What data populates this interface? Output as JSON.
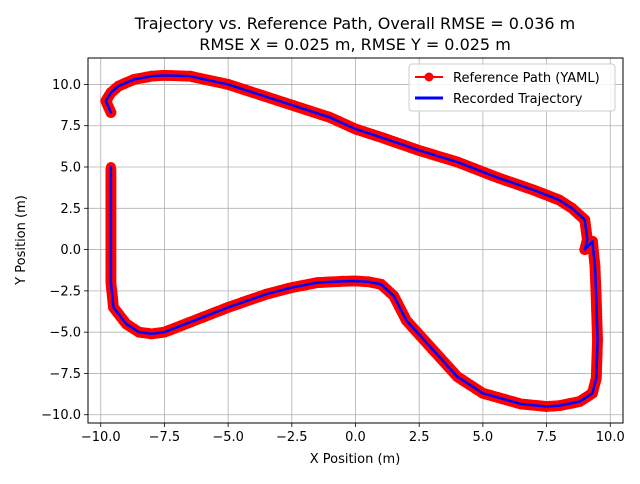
{
  "chart_data": {
    "type": "line",
    "title_line1": "Trajectory vs. Reference Path, Overall RMSE = 0.036 m",
    "title_line2": "RMSE X = 0.025 m, RMSE Y = 0.025 m",
    "xlabel": "X Position (m)",
    "ylabel": "Y Position (m)",
    "xlim": [
      -10.5,
      10.5
    ],
    "ylim": [
      -10.5,
      11.6
    ],
    "xticks": [
      -10.0,
      -7.5,
      -5.0,
      -2.5,
      0.0,
      2.5,
      5.0,
      7.5,
      10.0
    ],
    "xtick_labels": [
      "−10.0",
      "−7.5",
      "−5.0",
      "−2.5",
      "0.0",
      "2.5",
      "5.0",
      "7.5",
      "10.0"
    ],
    "yticks": [
      -10.0,
      -7.5,
      -5.0,
      -2.5,
      0.0,
      2.5,
      5.0,
      7.5,
      10.0
    ],
    "ytick_labels": [
      "−10.0",
      "−7.5",
      "−5.0",
      "−2.5",
      "0.0",
      "2.5",
      "5.0",
      "7.5",
      "10.0"
    ],
    "grid": true,
    "legend_position": "top-right",
    "series": [
      {
        "name": "Reference Path (YAML)",
        "color": "#ff0000",
        "marker": "circle",
        "x": [
          -9.6,
          -9.8,
          -9.6,
          -9.3,
          -8.7,
          -8.0,
          -7.5,
          -6.5,
          -5.0,
          -3.0,
          -1.0,
          0.0,
          1.0,
          2.5,
          4.0,
          5.5,
          7.0,
          8.0,
          8.5,
          9.0,
          9.1,
          9.0,
          9.3,
          9.4,
          9.45,
          9.5,
          9.45,
          9.3,
          8.8,
          8.0,
          7.5,
          6.5,
          5.0,
          4.0,
          3.0,
          2.0,
          1.5,
          1.0,
          0.5,
          0.0,
          -0.5,
          -1.5,
          -2.5,
          -3.5,
          -5.0,
          -6.0,
          -7.0,
          -7.5,
          -8.0,
          -8.5,
          -9.0,
          -9.5,
          -9.6,
          -9.6,
          -9.6,
          -9.6
        ],
        "y": [
          8.3,
          9.0,
          9.5,
          9.9,
          10.3,
          10.5,
          10.55,
          10.5,
          10.0,
          9.0,
          8.0,
          7.3,
          6.8,
          6.0,
          5.3,
          4.4,
          3.6,
          3.0,
          2.5,
          1.8,
          0.6,
          0.0,
          0.5,
          -1.0,
          -3.0,
          -5.5,
          -7.8,
          -8.7,
          -9.2,
          -9.45,
          -9.5,
          -9.35,
          -8.7,
          -7.7,
          -6.0,
          -4.3,
          -2.8,
          -2.1,
          -1.95,
          -1.9,
          -1.92,
          -2.0,
          -2.3,
          -2.7,
          -3.5,
          -4.1,
          -4.7,
          -5.0,
          -5.1,
          -5.0,
          -4.5,
          -3.5,
          -2.0,
          -0.5,
          1.0,
          5.0
        ]
      },
      {
        "name": "Recorded Trajectory",
        "color": "#0000ff",
        "marker": "none",
        "x": [
          -9.6,
          -9.8,
          -9.6,
          -9.3,
          -8.7,
          -8.0,
          -7.5,
          -6.5,
          -5.0,
          -3.0,
          -1.0,
          0.0,
          1.0,
          2.5,
          4.0,
          5.5,
          7.0,
          8.0,
          8.5,
          9.0,
          9.1,
          9.0,
          9.3,
          9.4,
          9.45,
          9.5,
          9.45,
          9.3,
          8.8,
          8.0,
          7.5,
          6.5,
          5.0,
          4.0,
          3.0,
          2.0,
          1.5,
          1.0,
          0.5,
          0.0,
          -0.5,
          -1.5,
          -2.5,
          -3.5,
          -5.0,
          -6.0,
          -7.0,
          -7.5,
          -8.0,
          -8.5,
          -9.0,
          -9.5,
          -9.6,
          -9.6,
          -9.6,
          -9.6
        ],
        "y": [
          8.3,
          9.0,
          9.5,
          9.9,
          10.3,
          10.5,
          10.55,
          10.5,
          10.0,
          9.0,
          8.0,
          7.3,
          6.8,
          6.0,
          5.3,
          4.4,
          3.6,
          3.0,
          2.5,
          1.8,
          0.6,
          0.0,
          0.5,
          -1.0,
          -3.0,
          -5.5,
          -7.8,
          -8.7,
          -9.2,
          -9.45,
          -9.5,
          -9.35,
          -8.7,
          -7.7,
          -6.0,
          -4.3,
          -2.8,
          -2.1,
          -1.95,
          -1.9,
          -1.92,
          -2.0,
          -2.3,
          -2.7,
          -3.5,
          -4.1,
          -4.7,
          -5.0,
          -5.1,
          -5.0,
          -4.5,
          -3.5,
          -2.0,
          -0.5,
          1.0,
          5.0
        ]
      }
    ]
  }
}
